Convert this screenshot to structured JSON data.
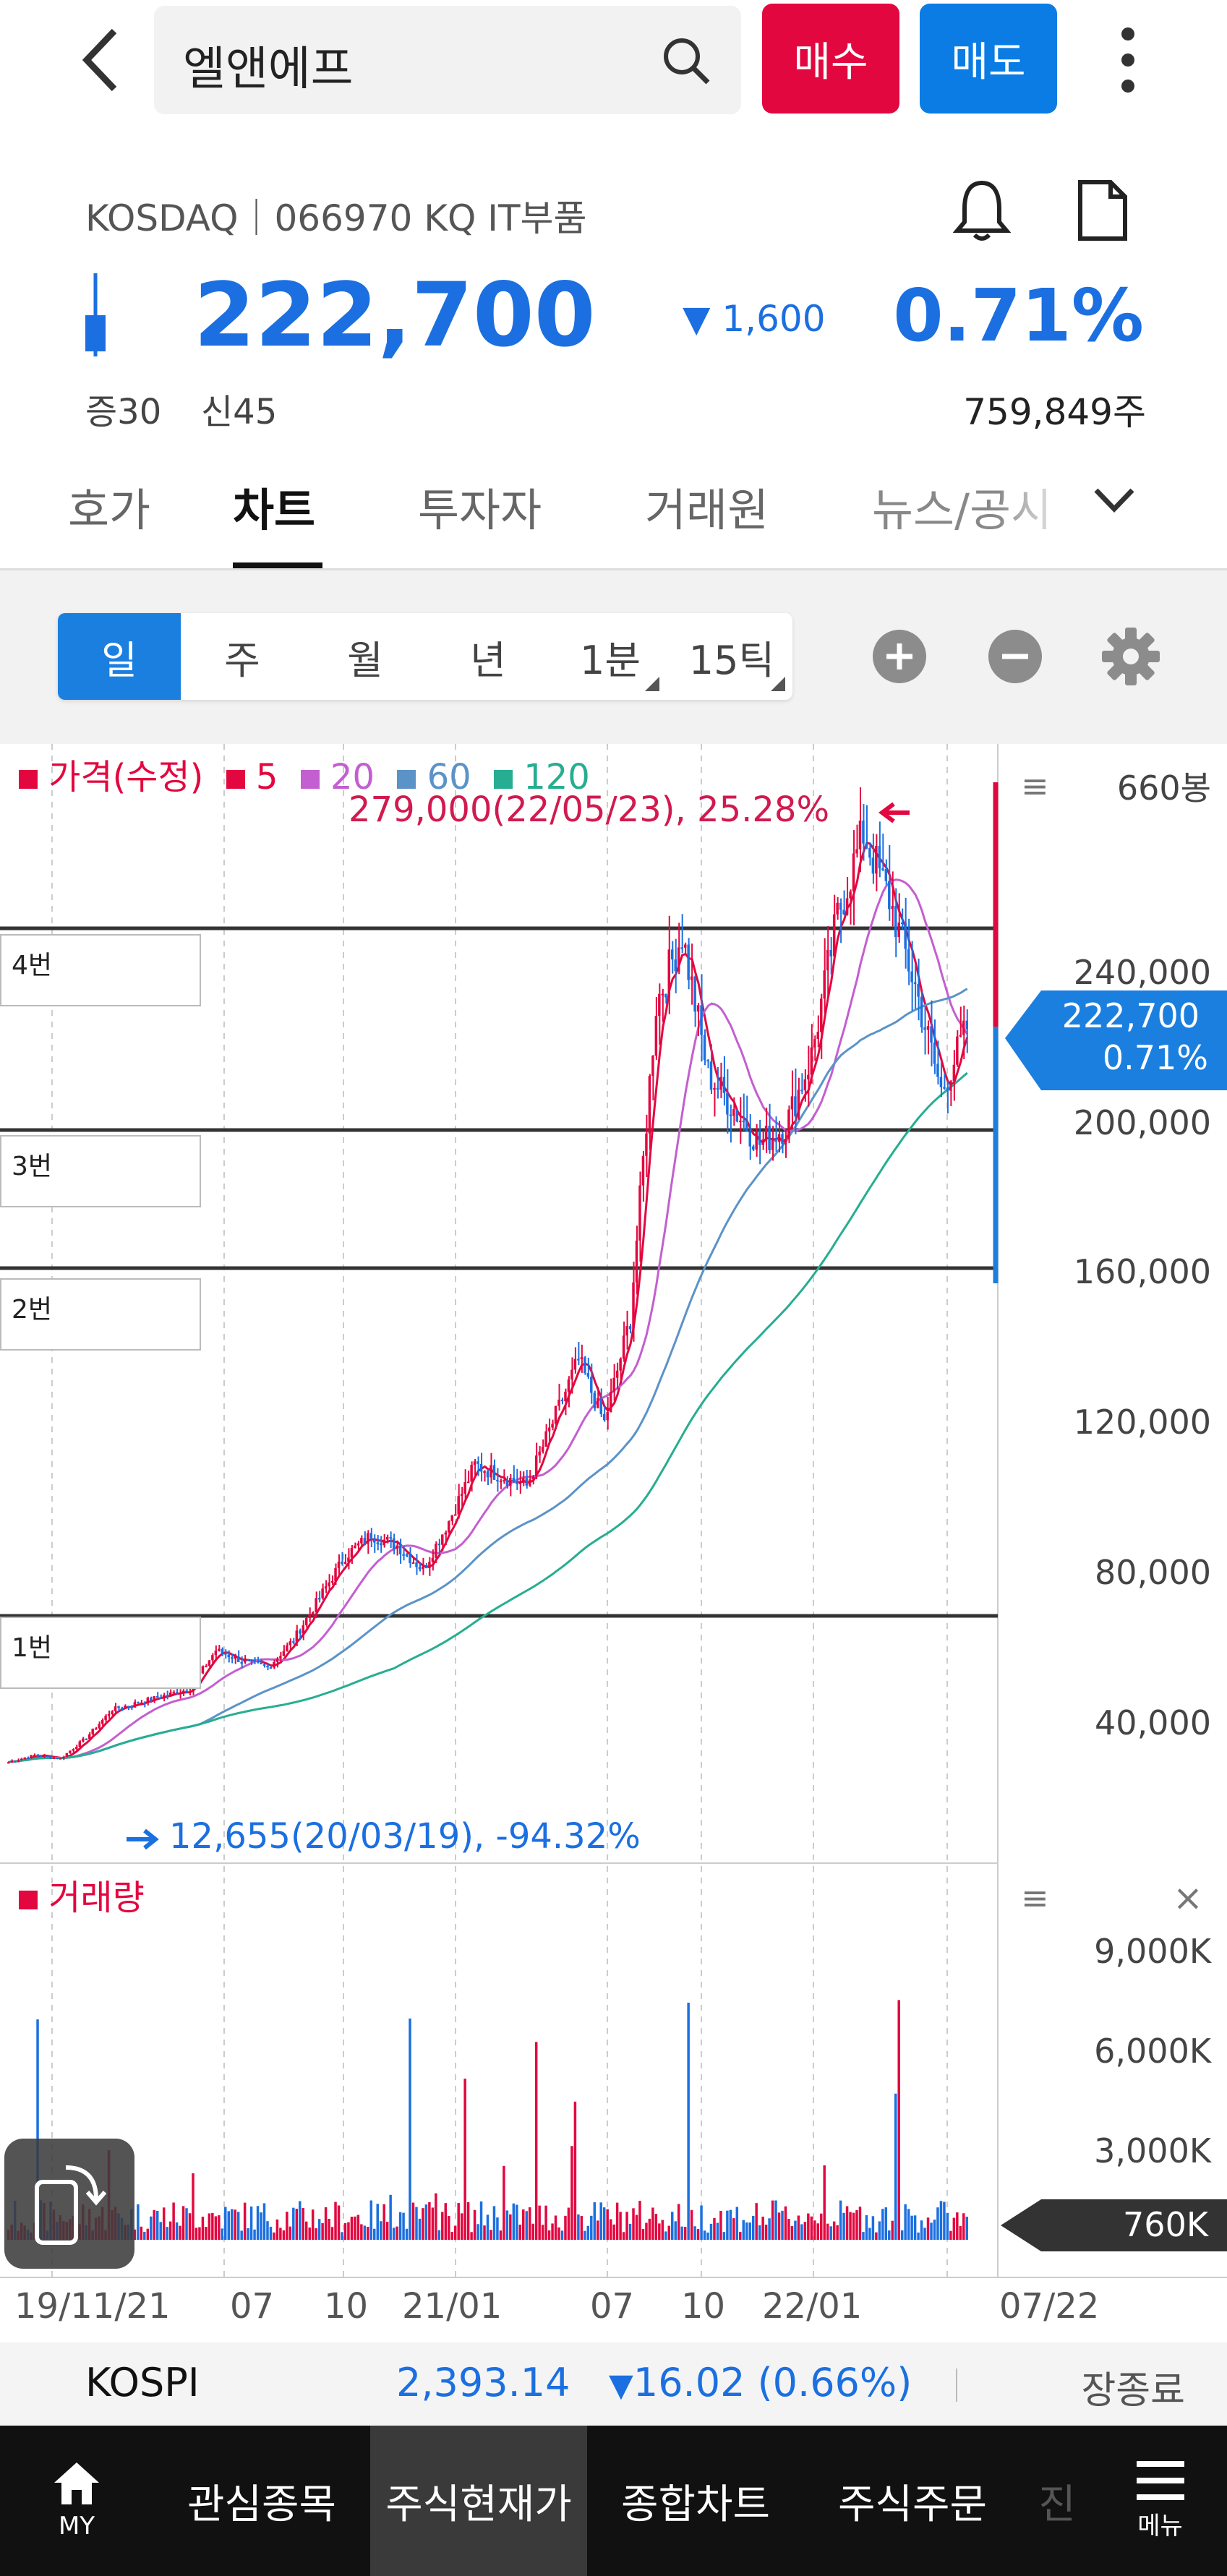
{
  "header": {
    "search_value": "엘앤에프",
    "buy_label": "매수",
    "sell_label": "매도"
  },
  "stock": {
    "market_info": "KOSDAQ｜066970 KQ IT부품",
    "price": "222,700",
    "change": "1,600",
    "change_pct": "0.71%",
    "margin_rate": "증30",
    "credit_rate": "신45",
    "volume": "759,849주",
    "colors": {
      "down": "#1b6fe0",
      "up": "#e3073f"
    }
  },
  "tabs": [
    "호가",
    "차트",
    "투자자",
    "거래원",
    "뉴스/공시"
  ],
  "active_tab": "차트",
  "period_buttons": [
    "일",
    "주",
    "월",
    "년",
    "1분",
    "15틱"
  ],
  "active_period": "일",
  "chart": {
    "legend": {
      "price": "가격(수정)",
      "ma5": "5",
      "ma20": "20",
      "ma60": "60",
      "ma120": "120"
    },
    "high_annotation": "279,000(22/05/23), 25.28%",
    "low_annotation": "12,655(20/03/19), -94.32%",
    "price_box_value": "222,700",
    "price_box_pct": "0.71%",
    "candle_count_label": "660봉",
    "y_axis": [
      "240,000",
      "200,000",
      "160,000",
      "120,000",
      "80,000",
      "40,000"
    ],
    "markers": [
      "4번",
      "3번",
      "2번",
      "1번"
    ],
    "volume_title": "거래량",
    "volume_axis": [
      "9,000K",
      "6,000K",
      "3,000K"
    ],
    "volume_box": "760K",
    "x_axis": [
      "19/11/21",
      "07",
      "10",
      "21/01",
      "07",
      "10",
      "22/01",
      "07/22"
    ]
  },
  "chart_data": {
    "type": "candlestick",
    "ylim": [
      0,
      300000
    ],
    "series_price": [
      13000,
      15000,
      14000,
      20000,
      28000,
      30000,
      32000,
      34000,
      45000,
      42000,
      40000,
      48000,
      60000,
      72000,
      78000,
      75000,
      68000,
      82000,
      98000,
      95000,
      92000,
      110000,
      128000,
      110000,
      140000,
      230000,
      250000,
      210000,
      200000,
      190000,
      195000,
      215000,
      255000,
      279000,
      260000,
      235000,
      205000,
      222700
    ],
    "ma_series": [
      {
        "name": "5",
        "color": "#e3073f"
      },
      {
        "name": "20",
        "color": "#c35fd0"
      },
      {
        "name": "60",
        "color": "#5b93c8"
      },
      {
        "name": "120",
        "color": "#27ad91"
      }
    ]
  },
  "index_bar": {
    "name": "KOSPI",
    "value": "2,393.14",
    "change": "16.02 (0.66%)",
    "status": "장종료"
  },
  "bottom_nav": [
    "MY",
    "관심종목",
    "주식현재가",
    "종합차트",
    "주식주문",
    "진",
    "메뉴"
  ]
}
